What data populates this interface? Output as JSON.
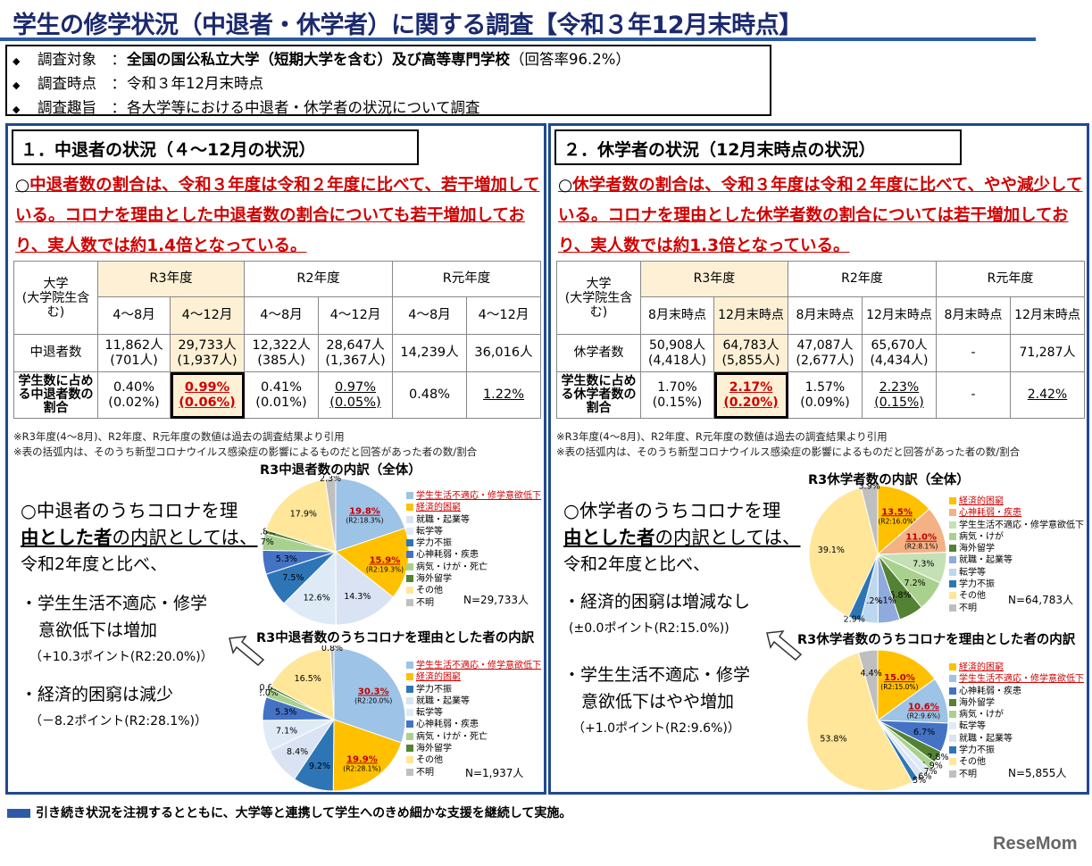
{
  "title": "学生の修学状況（中退者・休学者）に関する調査【令和３年12月末時点】",
  "overview": [
    {
      "label": "調査対象　：",
      "bold": "全国の国公私立大学（短期大学を含む）及び高等専門学校",
      "rest": "（回答率96.2%）"
    },
    {
      "label": "調査時点　：",
      "bold": "",
      "rest": "令和３年12月末時点"
    },
    {
      "label": "調査趣旨　：",
      "bold": "",
      "rest": "各大学等における中退者・休学者の状況について調査"
    }
  ],
  "left": {
    "heading": "１．中退者の状況（４～12月の状況）",
    "lead_mark": "○",
    "lead": "中退者数の割合は、令和３年度は令和２年度に比べて、若干増加している。コロナを理由とした中退者数の割合についても若干増加しており、実人数では約1.4倍となっている。",
    "table": {
      "corner": "大学\n(大学院生含む)",
      "years": [
        "R3年度",
        "R2年度",
        "R元年度"
      ],
      "periods": [
        "4～8月",
        "4～12月",
        "4～8月",
        "4～12月",
        "4～8月",
        "4～12月"
      ],
      "row1_label": "中退者数",
      "row1": [
        [
          "11,862人",
          "(701人)"
        ],
        [
          "29,733人",
          "(1,937人)"
        ],
        [
          "12,322人",
          "(385人)"
        ],
        [
          "28,647人",
          "(1,367人)"
        ],
        [
          "14,239人",
          ""
        ],
        [
          "36,016人",
          ""
        ]
      ],
      "row2_label": "学生数に占める中退者数の割合",
      "row2": [
        [
          "0.40%",
          "(0.02%)"
        ],
        [
          "0.99%",
          "(0.06%)"
        ],
        [
          "0.41%",
          "(0.01%)"
        ],
        [
          "0.97%",
          "(0.05%)"
        ],
        [
          "0.48%",
          ""
        ],
        [
          "1.22%",
          ""
        ]
      ]
    },
    "notes": [
      "※R3年度(4～8月)、R2年度、R元年度の数値は過去の調査結果より引用",
      "※表の括弧内は、そのうち新型コロナウイルス感染症の影響によるものだと回答があった者の数/割合"
    ],
    "side": {
      "l1": "○中退者のうちコロナを理",
      "l2a": "由とした者",
      "l2b": "の内訳としては、",
      "l3": "令和2年度と比べ、",
      "l4": "・学生生活不適応・修学",
      "l5": "意欲低下は増加",
      "l6": "（+10.3ポイント(R2:20.0%)）",
      "l7": "・経済的困窮は減少",
      "l8": "（－8.2ポイント(R2:28.1%)）"
    },
    "pie1": {
      "title": "R3中退者数の内訳（全体）",
      "n": "N=29,733人",
      "legend": [
        "学生生活不適応・修学意欲低下",
        "経済的困窮",
        "就職・起業等",
        "転学等",
        "学力不振",
        "心神耗弱・疾患",
        "病気・けが・死亡",
        "海外留学",
        "その他",
        "不明"
      ]
    },
    "pie2": {
      "title": "R3中退者数のうちコロナを理由とした者の内訳",
      "n": "N=1,937人",
      "legend": [
        "学生生活不適応・修学意欲低下",
        "経済的困窮",
        "学力不振",
        "就職・起業等",
        "転学等",
        "心神耗弱・疾患",
        "病気・けが・死亡",
        "海外留学",
        "その他",
        "不明"
      ]
    }
  },
  "right": {
    "heading": "２．休学者の状況（12月末時点の状況）",
    "lead_mark": "○",
    "lead": "休学者数の割合は、令和３年度は令和２年度に比べて、やや減少している。コロナを理由とした休学者数の割合については若干増加しており、実人数では約1.3倍となっている。",
    "table": {
      "corner": "大学\n(大学院生含む)",
      "years": [
        "R3年度",
        "R2年度",
        "R元年度"
      ],
      "periods": [
        "8月末時点",
        "12月末時点",
        "8月末時点",
        "12月末時点",
        "8月末時点",
        "12月末時点"
      ],
      "row1_label": "休学者数",
      "row1": [
        [
          "50,908人",
          "(4,418人)"
        ],
        [
          "64,783人",
          "(5,855人)"
        ],
        [
          "47,087人",
          "(2,677人)"
        ],
        [
          "65,670人",
          "(4,434人)"
        ],
        [
          "-",
          ""
        ],
        [
          "71,287人",
          ""
        ]
      ],
      "row2_label": "学生数に占める休学者数の割合",
      "row2": [
        [
          "1.70%",
          "(0.15%)"
        ],
        [
          "2.17%",
          "(0.20%)"
        ],
        [
          "1.57%",
          "(0.09%)"
        ],
        [
          "2.23%",
          "(0.15%)"
        ],
        [
          "-",
          ""
        ],
        [
          "2.42%",
          ""
        ]
      ]
    },
    "notes": [
      "※R3年度(4～8月)、R2年度、R元年度の数値は過去の調査結果より引用",
      "※表の括弧内は、そのうち新型コロナウイルス感染症の影響によるものだと回答があった者の数/割合"
    ],
    "side": {
      "l1": "○休学者のうちコロナを理",
      "l2a": "由とした者",
      "l2b": "の内訳としては、",
      "l3": "令和2年度と比べ、",
      "l4": "・経済的困窮は増減なし",
      "l5": "(±0.0ポイント(R2:15.0%))",
      "l6": "・学生生活不適応・修学",
      "l7": "意欲低下はやや増加",
      "l8": "（+1.0ポイント(R2:9.6%)）"
    },
    "pie1": {
      "title": "R3休学者数の内訳（全体）",
      "n": "N=64,783人",
      "legend": [
        "経済的困窮",
        "心神耗弱・疾患",
        "学生生活不適応・修学意欲低下",
        "病気・けが",
        "海外留学",
        "就職・起業等",
        "転学等",
        "学力不振",
        "その他",
        "不明"
      ]
    },
    "pie2": {
      "title": "R3休学者数のうちコロナを理由とした者の内訳",
      "n": "N=5,855人",
      "legend": [
        "経済的困窮",
        "学生生活不適応・修学意欲低下",
        "心神耗弱・疾患",
        "海外留学",
        "病気・けが",
        "転学等",
        "就職・起業等",
        "学力不振",
        "その他",
        "不明"
      ]
    }
  },
  "chart_data": [
    {
      "type": "pie",
      "title": "R3中退者数の内訳（全体）",
      "labels": [
        "学生生活不適応・修学意欲低下",
        "経済的困窮",
        "就職・起業等",
        "転学等",
        "学力不振",
        "心神耗弱・疾患",
        "病気・けが・死亡",
        "海外留学",
        "その他",
        "不明"
      ],
      "values": [
        19.8,
        15.9,
        14.3,
        12.6,
        7.5,
        5.3,
        3.7,
        0.8,
        17.9,
        2.3
      ],
      "r2_notes": {
        "学生生活不適応・修学意欲低下": "(R2:18.3%)",
        "経済的困窮": "(R2:19.3%)"
      }
    },
    {
      "type": "pie",
      "title": "R3中退者数のうちコロナを理由とした者の内訳",
      "labels": [
        "学生生活不適応・修学意欲低下",
        "経済的困窮",
        "学力不振",
        "就職・起業等",
        "転学等",
        "心神耗弱・疾患",
        "病気・けが・死亡",
        "海外留学",
        "その他",
        "不明"
      ],
      "values": [
        30.3,
        19.9,
        9.2,
        8.4,
        7.1,
        5.3,
        2.0,
        0.6,
        16.5,
        0.8
      ],
      "r2_notes": {
        "学生生活不適応・修学意欲低下": "(R2:20.0%)",
        "経済的困窮": "(R2:28.1%)"
      }
    },
    {
      "type": "pie",
      "title": "R3休学者数の内訳（全体）",
      "labels": [
        "経済的困窮",
        "心神耗弱・疾患",
        "学生生活不適応・修学意欲低下",
        "病気・けが",
        "海外留学",
        "就職・起業等",
        "転学等",
        "学力不振",
        "その他",
        "不明"
      ],
      "values": [
        13.5,
        11.0,
        7.3,
        7.2,
        5.8,
        5.1,
        4.2,
        2.9,
        39.1,
        3.9
      ],
      "r2_notes": {
        "経済的困窮": "(R2:16.0%)",
        "心神耗弱・疾患": "(R2:8.1%)"
      }
    },
    {
      "type": "pie",
      "title": "R3休学者数のうちコロナを理由とした者の内訳",
      "labels": [
        "経済的困窮",
        "学生生活不適応・修学意欲低下",
        "心神耗弱・疾患",
        "海外留学",
        "病気・けが",
        "転学等",
        "就職・起業等",
        "学力不振",
        "その他",
        "不明"
      ],
      "values": [
        15.0,
        10.6,
        6.7,
        2.8,
        1.9,
        1.7,
        1.6,
        1.5,
        53.8,
        4.4
      ],
      "r2_notes": {
        "経済的困窮": "(R2:15.0%)",
        "学生生活不適応・修学意欲低下": "(R2:9.6%)"
      }
    }
  ],
  "colors": {
    "title": "#1b2a6e",
    "accent": "#2d5aa7",
    "red": "#d00000",
    "highlight": "#fdf0d5"
  },
  "footer": "引き続き状況を注視するとともに、大学等と連携して学生へのきめ細かな支援を継続して実施。",
  "logo": "ReseMom"
}
